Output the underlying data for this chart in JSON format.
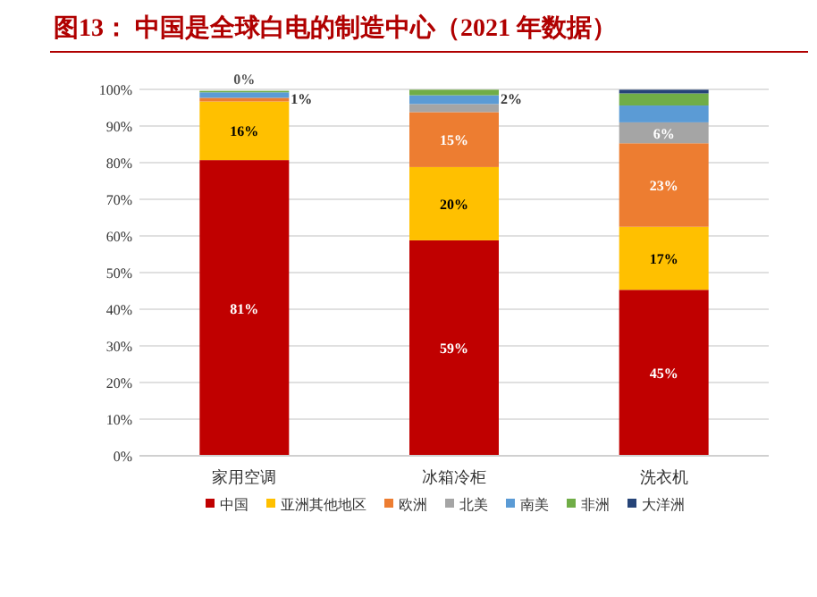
{
  "chart_data": {
    "type": "bar",
    "stacked": true,
    "title": "图13：  中国是全球白电的制造中心（2021 年数据）",
    "categories": [
      "家用空调",
      "冰箱冷柜",
      "洗衣机"
    ],
    "series": [
      {
        "name": "中国",
        "color": "#c00000",
        "values": [
          80.7,
          58.8,
          45.3
        ],
        "value_labels": [
          "81%",
          "59%",
          "45%"
        ]
      },
      {
        "name": "亚洲其他地区",
        "color": "#ffc000",
        "values": [
          16,
          20,
          17.2
        ],
        "value_labels": [
          "16%",
          "20%",
          "17%"
        ]
      },
      {
        "name": "欧洲",
        "color": "#ed7d31",
        "values": [
          1,
          15,
          22.8
        ],
        "value_labels": [
          "1%",
          "15%",
          "23%"
        ]
      },
      {
        "name": "北美",
        "color": "#a5a5a5",
        "values": [
          null,
          2.2,
          5.7
        ],
        "value_labels": [
          null,
          null,
          "6%"
        ]
      },
      {
        "name": "南美",
        "color": "#5b9bd5",
        "values": [
          1.5,
          2.4,
          4.6
        ],
        "value_labels": [
          null,
          "2%",
          null
        ]
      },
      {
        "name": "非洲",
        "color": "#70ad47",
        "values": [
          0.4,
          1.5,
          3.3
        ],
        "value_labels": [
          "0%",
          null,
          null
        ]
      },
      {
        "name": "大洋洲",
        "color": "#264478",
        "values": [
          0,
          0,
          1.0
        ],
        "value_labels": [
          null,
          null,
          null
        ]
      }
    ],
    "ylim": [
      0,
      100
    ],
    "yticks": [
      {
        "value": 0,
        "label": "0%"
      },
      {
        "value": 10,
        "label": "10%"
      },
      {
        "value": 20,
        "label": "20%"
      },
      {
        "value": 30,
        "label": "30%"
      },
      {
        "value": 40,
        "label": "40%"
      },
      {
        "value": 50,
        "label": "50%"
      },
      {
        "value": 60,
        "label": "60%"
      },
      {
        "value": 70,
        "label": "70%"
      },
      {
        "value": 80,
        "label": "80%"
      },
      {
        "value": 90,
        "label": "90%"
      },
      {
        "value": 100,
        "label": "100%"
      }
    ],
    "grid": "y",
    "legend": "bottom"
  }
}
